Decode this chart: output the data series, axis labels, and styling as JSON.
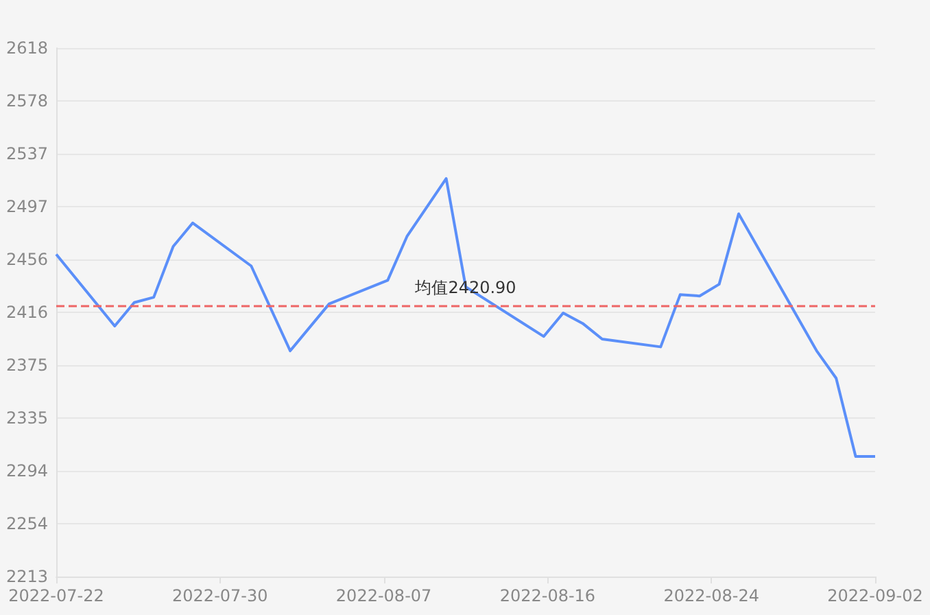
{
  "chart_data": {
    "type": "line",
    "x": [
      "2022-07-22",
      "2022-07-25",
      "2022-07-26",
      "2022-07-27",
      "2022-07-28",
      "2022-07-29",
      "2022-08-01",
      "2022-08-03",
      "2022-08-05",
      "2022-08-08",
      "2022-08-09",
      "2022-08-11",
      "2022-08-12",
      "2022-08-16",
      "2022-08-17",
      "2022-08-18",
      "2022-08-19",
      "2022-08-22",
      "2022-08-23",
      "2022-08-24",
      "2022-08-25",
      "2022-08-26",
      "2022-08-30",
      "2022-08-31",
      "2022-09-01",
      "2022-09-02"
    ],
    "series": [
      {
        "color": "#5b8ff9",
        "values": [
          2460,
          2405,
          2423,
          2427,
          2466,
          2484,
          2451,
          2386,
          2422,
          2440,
          2474,
          2518,
          2435,
          2397,
          2415,
          2407,
          2395,
          2389,
          2429,
          2428,
          2437,
          2491,
          2386,
          2365,
          2305,
          2305
        ]
      }
    ],
    "xlim": [
      "2022-07-22",
      "2022-09-02"
    ],
    "xticks": [
      {
        "value": "2022-07-22",
        "label": "2022-07-22"
      },
      {
        "value": "2022-07-30T09:36",
        "label": "2022-07-30"
      },
      {
        "value": "2022-08-07T19:12",
        "label": "2022-08-07"
      },
      {
        "value": "2022-08-16T04:48",
        "label": "2022-08-16"
      },
      {
        "value": "2022-08-24T14:24",
        "label": "2022-08-24"
      },
      {
        "value": "2022-09-02",
        "label": "2022-09-02"
      }
    ],
    "ylim": [
      2213,
      2618
    ],
    "yticks": [
      2213,
      {
        "value": 2253.5,
        "label": "2254"
      },
      2294,
      {
        "value": 2334.5,
        "label": "2335"
      },
      2375,
      {
        "value": 2415.5,
        "label": "2416"
      },
      2456,
      {
        "value": 2496.5,
        "label": "2497"
      },
      2537,
      {
        "value": 2577.5,
        "label": "2578"
      },
      2618
    ],
    "ref_lines": [
      {
        "axis": "y",
        "value": 2420.9,
        "label": "均值2420.90",
        "color": "#ee6666",
        "line_style": "dashed"
      }
    ],
    "grid": "y",
    "marker": "none",
    "line_style": "solid"
  }
}
